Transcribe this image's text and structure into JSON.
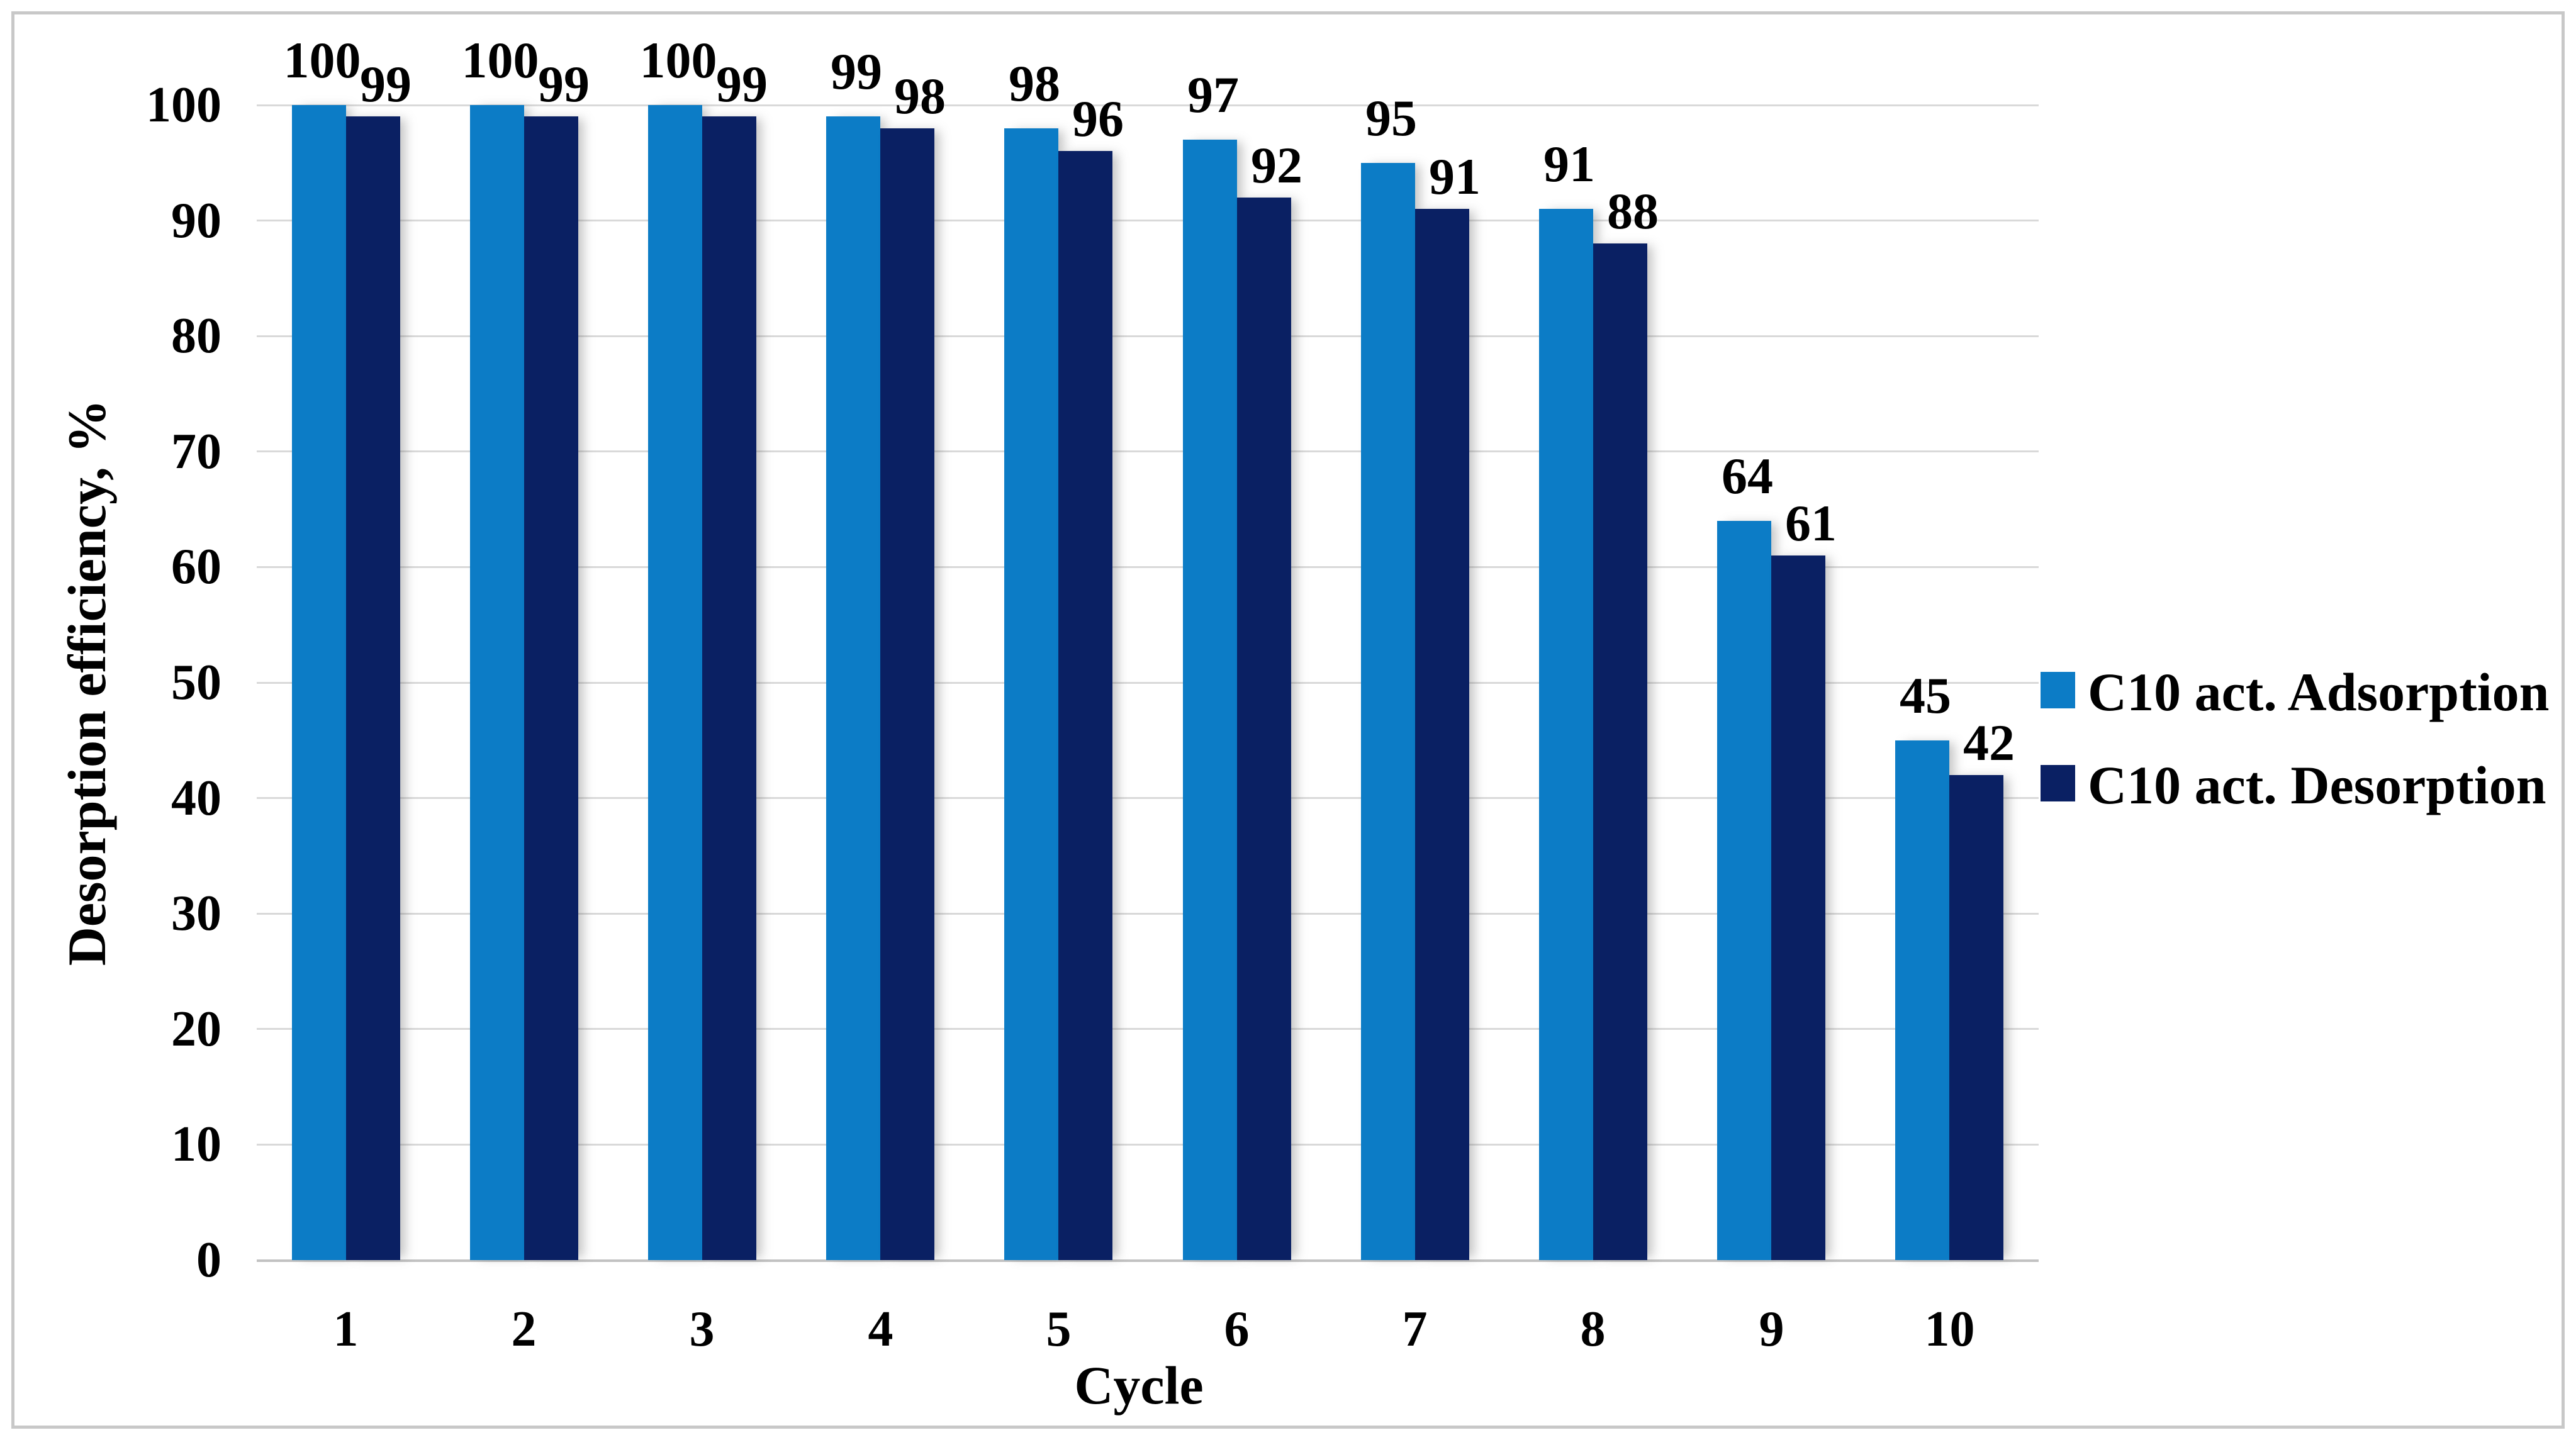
{
  "chart_data": {
    "type": "bar",
    "title": "",
    "xlabel": "Cycle",
    "ylabel": "Desorption efficiency, %",
    "categories": [
      "1",
      "2",
      "3",
      "4",
      "5",
      "6",
      "7",
      "8",
      "9",
      "10"
    ],
    "series": [
      {
        "name": "C10 act. Adsorption",
        "color": "#0c7cc6",
        "values": [
          100,
          100,
          100,
          99,
          98,
          97,
          95,
          91,
          64,
          45
        ]
      },
      {
        "name": "C10 act. Desorption",
        "color": "#0a2063",
        "values": [
          99,
          99,
          99,
          98,
          96,
          92,
          91,
          88,
          61,
          42
        ]
      }
    ],
    "ylim": [
      0,
      100
    ],
    "ytick_step": 10,
    "yticks": [
      "0",
      "10",
      "20",
      "30",
      "40",
      "50",
      "60",
      "70",
      "80",
      "90",
      "100"
    ],
    "grid": "horizontal",
    "gridline_color": "#d9d9d9",
    "frame_color": "#c8c8c8",
    "data_labels": true,
    "legend_position": "middle-right"
  }
}
